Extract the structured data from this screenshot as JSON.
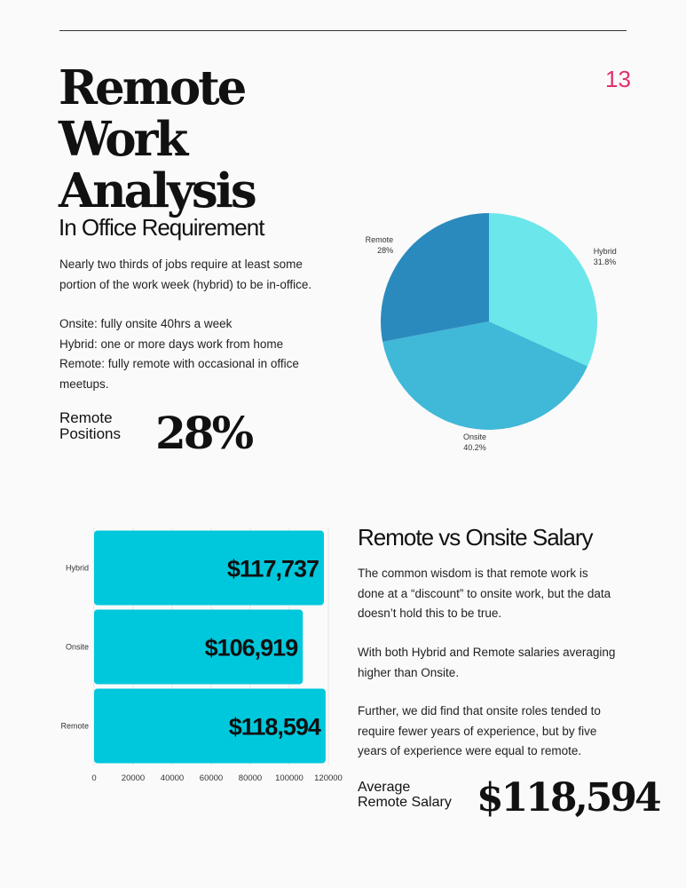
{
  "page": {
    "number": "13",
    "title_line1": "Remote Work",
    "title_line2": "Analysis"
  },
  "office": {
    "heading": "In Office Requirement",
    "para1_line1": "Nearly two thirds of jobs require at least some",
    "para1_line2": "portion of the work week (hybrid) to be in-office.",
    "def_onsite": "Onsite: fully onsite 40hrs a week",
    "def_hybrid": "Hybrid: one or more days work from home",
    "def_remote_line1": "Remote: fully remote with occasional in office",
    "def_remote_line2": "meetups.",
    "stat_label_line1": "Remote",
    "stat_label_line2": "Positions",
    "stat_value": "28%"
  },
  "salary": {
    "heading": "Remote vs Onsite Salary",
    "p1_line1": "The common wisdom is that remote work is",
    "p1_line2": "done at a “discount” to onsite work, but the data",
    "p1_line3": "doesn’t hold this to be true.",
    "p2_line1": "With both Hybrid and Remote salaries averaging",
    "p2_line2": "higher than Onsite.",
    "p3_line1": "Further, we did find that onsite roles tended to",
    "p3_line2": "require fewer years of experience, but by five",
    "p3_line3": "years of experience were equal to remote.",
    "stat_label_line1": "Average",
    "stat_label_line2": "Remote Salary",
    "stat_value": "$118,594"
  },
  "chart_data": [
    {
      "type": "pie",
      "categories": [
        "Hybrid",
        "Onsite",
        "Remote"
      ],
      "values": [
        31.8,
        40.2,
        28
      ],
      "labels": [
        "31.8%",
        "40.2%",
        "28%"
      ],
      "colors": [
        "#6be6ea",
        "#40b8d8",
        "#2b8abd"
      ],
      "start_angle_deg": 0,
      "direction": "clockwise"
    },
    {
      "type": "bar",
      "orientation": "horizontal",
      "categories": [
        "Hybrid",
        "Onsite",
        "Remote"
      ],
      "values": [
        117737,
        106919,
        118594
      ],
      "value_labels": [
        "$117,737",
        "$106,919",
        "$118,594"
      ],
      "x_ticks": [
        0,
        20000,
        40000,
        60000,
        80000,
        100000,
        120000
      ],
      "xlim": [
        0,
        120000
      ],
      "color": "#00c8dc",
      "grid": true
    }
  ]
}
